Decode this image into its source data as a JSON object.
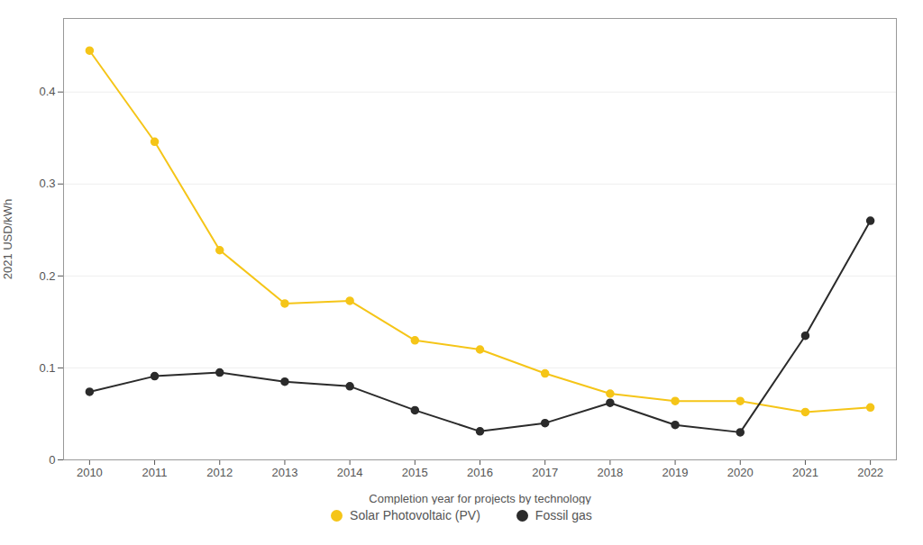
{
  "chart_data": {
    "type": "line",
    "x": [
      2010,
      2011,
      2012,
      2013,
      2014,
      2015,
      2016,
      2017,
      2018,
      2019,
      2020,
      2021,
      2022
    ],
    "xlabel": "Completion year for projects by technology",
    "ylabel": "2021 USD/kWh",
    "xlim": [
      2009.6,
      2022.4
    ],
    "xticks": [
      2010,
      2011,
      2012,
      2013,
      2014,
      2015,
      2016,
      2017,
      2018,
      2019,
      2020,
      2021,
      2022
    ],
    "ylim": [
      0,
      0.48
    ],
    "yticks": [
      0,
      0.1,
      0.2,
      0.3,
      0.4
    ],
    "grid": true,
    "legend": "bottom",
    "marker": "circle",
    "series": [
      {
        "name": "Solar Photovoltaic (PV)",
        "color": "#F5C518",
        "values": [
          0.445,
          0.346,
          0.228,
          0.17,
          0.173,
          0.13,
          0.12,
          0.094,
          0.072,
          0.064,
          0.064,
          0.052,
          0.057
        ]
      },
      {
        "name": "Fossil gas",
        "color": "#2b2b2b",
        "values": [
          0.074,
          0.091,
          0.095,
          0.085,
          0.08,
          0.054,
          0.031,
          0.04,
          0.062,
          0.038,
          0.03,
          0.135,
          0.26
        ]
      }
    ]
  }
}
